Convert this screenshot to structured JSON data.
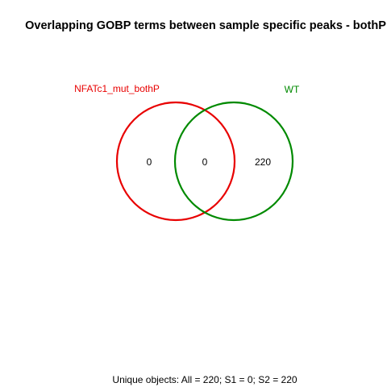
{
  "title": "Overlapping GOBP terms between sample specific peaks - bothP",
  "sets": [
    {
      "name": "NFATc1_mut_bothP",
      "color": "#e80000",
      "unique_count": "0"
    },
    {
      "name": "WT",
      "color": "#008a00",
      "unique_count": "220"
    }
  ],
  "intersection_count": "0",
  "footer": "Unique objects: All = 220; S1 = 0; S2 = 220"
}
